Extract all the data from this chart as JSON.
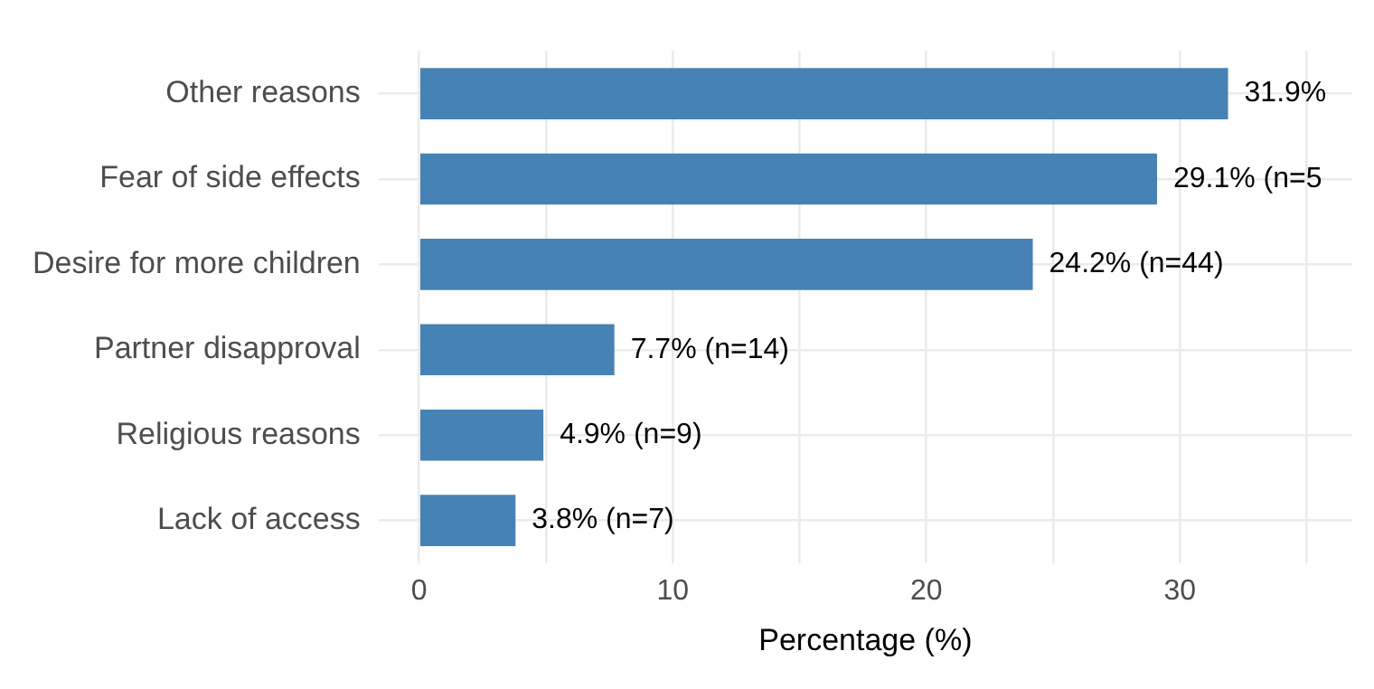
{
  "chart_data": {
    "type": "bar",
    "orientation": "horizontal",
    "xlabel": "Percentage (%)",
    "categories": [
      "Other reasons",
      "Fear of side effects",
      "Desire for more children",
      "Partner disapproval",
      "Religious reasons",
      "Lack of access"
    ],
    "values": [
      31.9,
      29.1,
      24.2,
      7.7,
      4.9,
      3.8
    ],
    "value_labels": [
      "31.9%",
      "29.1% (n=5",
      "24.2% (n=44)",
      "7.7% (n=14)",
      "4.9% (n=9)",
      "3.8% (n=7)"
    ],
    "color": "#4682b4",
    "xlim": [
      -1.6,
      36.8
    ],
    "xticks": [
      0,
      {
        "value": 5,
        "label": null
      },
      10,
      {
        "value": 15,
        "label": null
      },
      20,
      {
        "value": 25,
        "label": null
      },
      30,
      {
        "value": 35,
        "label": null
      }
    ],
    "grid": true,
    "legend": false
  }
}
